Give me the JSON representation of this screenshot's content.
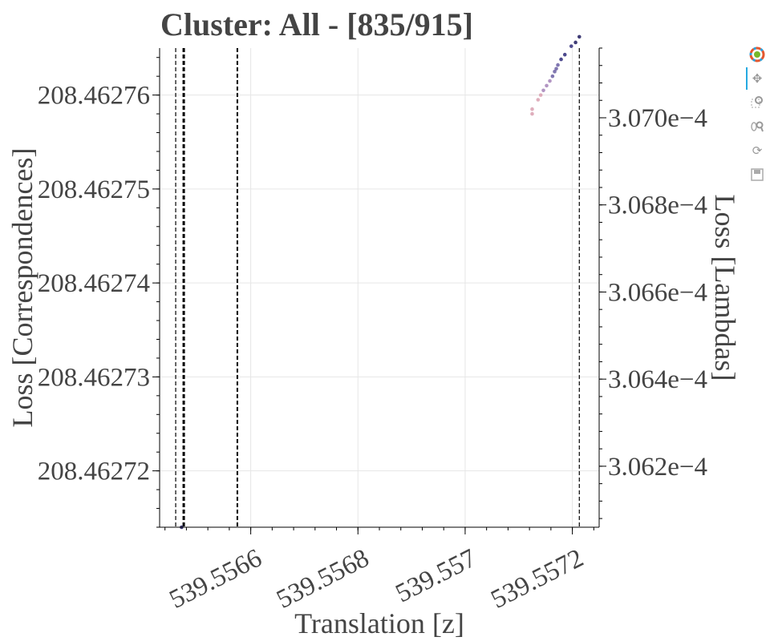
{
  "chart_data": {
    "type": "scatter",
    "title": "Cluster: All - [835/915]",
    "xlabel": "Translation [z]",
    "ylabel": "Loss [Correspondences]",
    "y2label": "Loss [Lambdas]",
    "xlim": [
      539.55643,
      539.55725
    ],
    "ylim": [
      208.462714,
      208.462765
    ],
    "y2lim": [
      0.00030606,
      0.00030716
    ],
    "x_ticks": [
      {
        "value": 539.5566,
        "label": "539.5566"
      },
      {
        "value": 539.5568,
        "label": "539.5568"
      },
      {
        "value": 539.557,
        "label": "539.557"
      },
      {
        "value": 539.5572,
        "label": "539.5572"
      }
    ],
    "y_ticks": [
      {
        "value": 208.46272,
        "label": "208.46272"
      },
      {
        "value": 208.46273,
        "label": "208.46273"
      },
      {
        "value": 208.46274,
        "label": "208.46274"
      },
      {
        "value": 208.46275,
        "label": "208.46275"
      },
      {
        "value": 208.46276,
        "label": "208.46276"
      }
    ],
    "y2_ticks": [
      {
        "value": 0.0003062,
        "label": "3.062e−4"
      },
      {
        "value": 0.0003064,
        "label": "3.064e−4"
      },
      {
        "value": 0.0003066,
        "label": "3.066e−4"
      },
      {
        "value": 0.0003068,
        "label": "3.068e−4"
      },
      {
        "value": 0.000307,
        "label": "3.070e−4"
      }
    ],
    "vlines": [
      {
        "x": 539.55646,
        "style": "dashed",
        "weight": "thin"
      },
      {
        "x": 539.556475,
        "style": "dashed",
        "weight": "thick"
      },
      {
        "x": 539.556575,
        "style": "dashed",
        "weight": "medium"
      },
      {
        "x": 539.557213,
        "style": "dashed",
        "weight": "thin"
      }
    ],
    "points": [
      {
        "x": 539.557125,
        "y": 208.462758
      },
      {
        "x": 539.557125,
        "y": 208.4627585
      },
      {
        "x": 539.557136,
        "y": 208.4627595
      },
      {
        "x": 539.557141,
        "y": 208.46276
      },
      {
        "x": 539.557146,
        "y": 208.4627605
      },
      {
        "x": 539.557152,
        "y": 208.462761
      },
      {
        "x": 539.557158,
        "y": 208.4627615
      },
      {
        "x": 539.557163,
        "y": 208.462762
      },
      {
        "x": 539.557167,
        "y": 208.4627625
      },
      {
        "x": 539.55717,
        "y": 208.4627628
      },
      {
        "x": 539.557173,
        "y": 208.4627632
      },
      {
        "x": 539.557179,
        "y": 208.4627638
      },
      {
        "x": 539.557186,
        "y": 208.4627643
      },
      {
        "x": 539.557198,
        "y": 208.4627652
      },
      {
        "x": 539.557206,
        "y": 208.4627656
      },
      {
        "x": 539.557213,
        "y": 208.4627662
      },
      {
        "x": 539.556471,
        "y": 208.462714
      }
    ],
    "grid": true,
    "point_colors": [
      "#d9a0b0",
      "#a582b8",
      "#6b5fa3",
      "#2e2a7a",
      "#1d1a5e"
    ]
  },
  "toolbar": {
    "items": [
      "bokeh-logo-icon",
      "pan-icon",
      "box-zoom-icon",
      "wheel-zoom-icon",
      "reset-icon",
      "save-icon"
    ]
  }
}
